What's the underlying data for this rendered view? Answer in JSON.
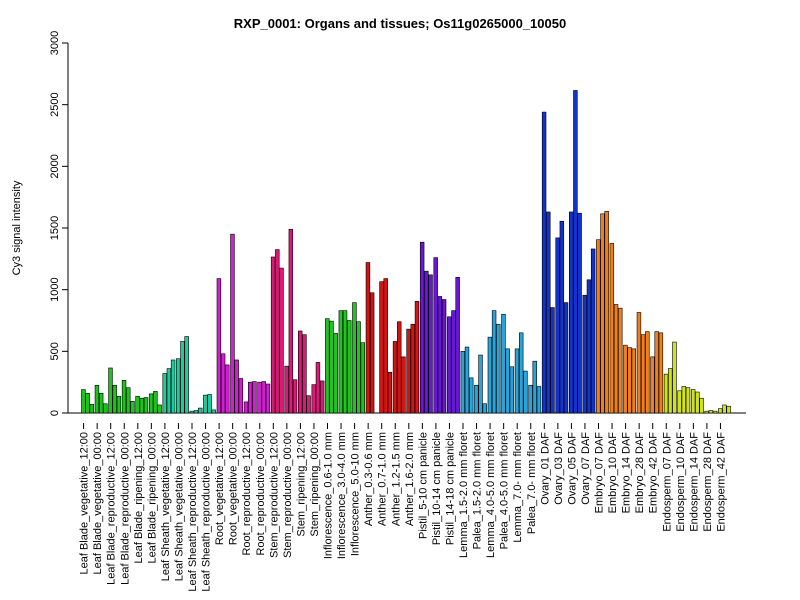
{
  "chart_data": {
    "type": "bar",
    "title": "RXP_0001: Organs and tissues; Os11g0265000_10050",
    "xlabel": "",
    "ylabel": "Cy3 signal intensity",
    "ylim": [
      0,
      3000
    ],
    "yticks": [
      0,
      500,
      1000,
      1500,
      2000,
      2500,
      3000
    ],
    "grid": false,
    "legend": "none",
    "labeled_categories": [
      "Leaf Blade_vegetative_12:00",
      "Leaf Blade_vegetative_00:00",
      "Leaf Blade_reproductive_12:00",
      "Leaf Blade_reproductive_00:00",
      "Leaf Blade_ripening_12:00",
      "Leaf Blade_ripening_00:00",
      "Leaf Sheath_vegetative_12:00",
      "Leaf Sheath_vegetative_00:00",
      "Leaf Sheath_reproductive_12:00",
      "Leaf Sheath_reproductive_00:00",
      "Root_vegetative_12:00",
      "Root_vegetative_00:00",
      "Root_reproductive_12:00",
      "Root_reproductive_00:00",
      "Stem_reproductive_12:00",
      "Stem_reproductive_00:00",
      "Stem_ripening_12:00",
      "Stem_ripening_00:00",
      "Inflorescence_0.6-1.0 mm",
      "Inflorescence_3.0-4.0 mm",
      "Inflorescence_5.0-10 mm",
      "Anther_0.3-0.6 mm",
      "Anther_0.7-1.0 mm",
      "Anther_1.2-1.5 mm",
      "Anther_1.6-2.0 mm",
      "Pistil_5-10 cm panicle",
      "Pistil_10-14 cm panicle",
      "Pistil_14-18 cm panicle",
      "Lemma_1.5-2.0 mm floret",
      "Palea_1.5-2.0 mm floret",
      "Lemma_4.0-5.0 mm floret",
      "Palea_4.0-5.0 mm floret",
      "Lemma_7.0- mm floret",
      "Palea_7.0- mm floret",
      "Ovary_01 DAF",
      "Ovary_03 DAF",
      "Ovary_05 DAF",
      "Ovary_07 DAF",
      "Embryo_07 DAF",
      "Embryo_10 DAF",
      "Embryo_14 DAF",
      "Embryo_28 DAF",
      "Embryo_42 DAF",
      "Endosperm_07 DAF",
      "Endosperm_10 DAF",
      "Endosperm_14 DAF",
      "Endosperm_28 DAF",
      "Endosperm_42 DAF"
    ],
    "groups": [
      {
        "label_index": 0,
        "color": "#1bc41b",
        "values": [
          190,
          160,
          70
        ]
      },
      {
        "label_index": 1,
        "color": "#1bc41b",
        "values": [
          225,
          160,
          75
        ]
      },
      {
        "label_index": 2,
        "color": "#1bc41b",
        "values": [
          365,
          225,
          135
        ]
      },
      {
        "label_index": 3,
        "color": "#1bc41b",
        "values": [
          265,
          205,
          95
        ]
      },
      {
        "label_index": 4,
        "color": "#1bc41b",
        "values": [
          135,
          120,
          125
        ]
      },
      {
        "label_index": 5,
        "color": "#1bc41b",
        "values": [
          155,
          175,
          65
        ]
      },
      {
        "label_index": 6,
        "color": "#22c99a",
        "values": [
          320,
          360,
          430
        ]
      },
      {
        "label_index": 7,
        "color": "#22c99a",
        "values": [
          440,
          580,
          620
        ]
      },
      {
        "label_index": 8,
        "color": "#22c99a",
        "values": [
          15,
          20,
          40
        ]
      },
      {
        "label_index": 9,
        "color": "#22c99a",
        "values": [
          145,
          150,
          25
        ]
      },
      {
        "label_index": 10,
        "color": "#d01fd0",
        "values": [
          1090,
          480,
          390
        ]
      },
      {
        "label_index": 11,
        "color": "#d01fd0",
        "values": [
          1450,
          430,
          280
        ]
      },
      {
        "label_index": 12,
        "color": "#d01fd0",
        "values": [
          90,
          250,
          255
        ]
      },
      {
        "label_index": 13,
        "color": "#d01fd0",
        "values": [
          250,
          255,
          235
        ]
      },
      {
        "label_index": 14,
        "color": "#db1a78",
        "values": [
          1265,
          1325,
          1175
        ]
      },
      {
        "label_index": 15,
        "color": "#db1a78",
        "values": [
          380,
          1490,
          270
        ]
      },
      {
        "label_index": 16,
        "color": "#db1a78",
        "values": [
          665,
          635,
          140
        ]
      },
      {
        "label_index": 17,
        "color": "#db1a78",
        "values": [
          230,
          410,
          260
        ]
      },
      {
        "label_index": 18,
        "color": "#21c421",
        "values": [
          765,
          745,
          645
        ]
      },
      {
        "label_index": 19,
        "color": "#21c421",
        "values": [
          830,
          830,
          750
        ]
      },
      {
        "label_index": 20,
        "color": "#21c421",
        "values": [
          895,
          740,
          570
        ]
      },
      {
        "label_index": 21,
        "color": "#d41414",
        "values": [
          1220,
          975
        ]
      },
      {
        "label_index": 22,
        "color": "#d41414",
        "values": [
          1065,
          1090,
          330
        ]
      },
      {
        "label_index": 23,
        "color": "#d41414",
        "values": [
          580,
          740,
          455
        ]
      },
      {
        "label_index": 24,
        "color": "#d41414",
        "values": [
          680,
          720,
          905
        ]
      },
      {
        "label_index": 25,
        "color": "#6818d4",
        "values": [
          1385,
          1150,
          1120
        ]
      },
      {
        "label_index": 26,
        "color": "#6818d4",
        "values": [
          1260,
          945,
          920
        ]
      },
      {
        "label_index": 27,
        "color": "#6818d4",
        "values": [
          780,
          830,
          1100
        ]
      },
      {
        "label_index": 28,
        "color": "#2aa3d8",
        "values": [
          500,
          535,
          285
        ]
      },
      {
        "label_index": 29,
        "color": "#2aa3d8",
        "values": [
          225,
          470,
          75
        ]
      },
      {
        "label_index": 30,
        "color": "#2aa3d8",
        "values": [
          615,
          830,
          720
        ]
      },
      {
        "label_index": 31,
        "color": "#2aa3d8",
        "values": [
          800,
          520,
          375
        ]
      },
      {
        "label_index": 32,
        "color": "#2aa3d8",
        "values": [
          520,
          650,
          340
        ]
      },
      {
        "label_index": 33,
        "color": "#2aa3d8",
        "values": [
          225,
          420,
          215
        ]
      },
      {
        "label_index": 34,
        "color": "#1433cc",
        "values": [
          2440,
          1630,
          855
        ]
      },
      {
        "label_index": 35,
        "color": "#1433cc",
        "values": [
          1420,
          1555,
          895
        ]
      },
      {
        "label_index": 36,
        "color": "#1433cc",
        "values": [
          1630,
          2615,
          1620
        ]
      },
      {
        "label_index": 37,
        "color": "#1433cc",
        "values": [
          955,
          1080,
          1330
        ]
      },
      {
        "label_index": 38,
        "color": "#ee7f1c",
        "values": [
          1405,
          1615,
          1635
        ]
      },
      {
        "label_index": 39,
        "color": "#ee7f1c",
        "values": [
          1375,
          880,
          850
        ]
      },
      {
        "label_index": 40,
        "color": "#ee7f1c",
        "values": [
          550,
          530,
          520
        ]
      },
      {
        "label_index": 41,
        "color": "#ee7f1c",
        "values": [
          815,
          635,
          660
        ]
      },
      {
        "label_index": 42,
        "color": "#ee7f1c",
        "values": [
          455,
          660,
          650
        ]
      },
      {
        "label_index": 43,
        "color": "#cfe21c",
        "values": [
          315,
          360,
          575
        ]
      },
      {
        "label_index": 44,
        "color": "#cfe21c",
        "values": [
          180,
          215,
          205
        ]
      },
      {
        "label_index": 45,
        "color": "#cfe21c",
        "values": [
          190,
          170,
          120
        ]
      },
      {
        "label_index": 46,
        "color": "#cfe21c",
        "values": [
          15,
          20,
          15
        ]
      },
      {
        "label_index": 47,
        "color": "#cfe21c",
        "values": [
          35,
          65,
          55
        ]
      }
    ]
  }
}
